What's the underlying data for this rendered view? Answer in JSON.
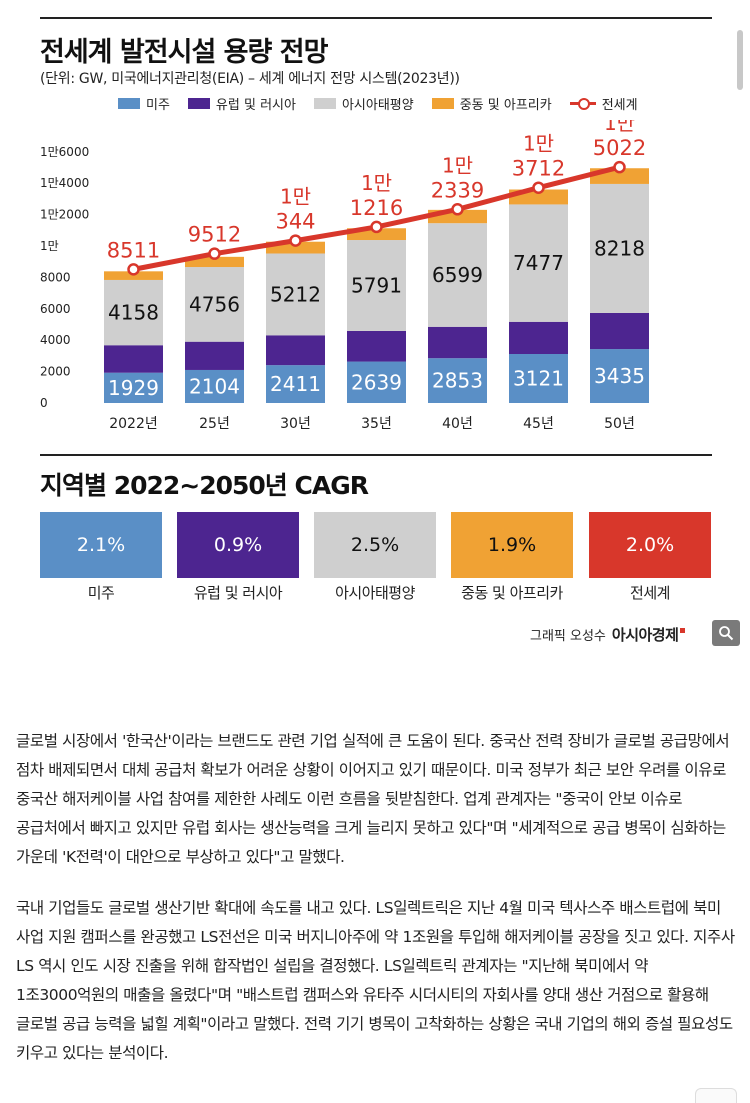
{
  "colors": {
    "americas": "#5a8fc6",
    "europe_russia": "#4d2590",
    "asia_pacific": "#cfcfcf",
    "middle_east_africa": "#f0a234",
    "world": "#d8372b"
  },
  "infographic": {
    "title": "전세계 발전시설 용량 전망",
    "subtitle": "(단위: GW, 미국에너지관리청(EIA) – 세계 에너지 전망 시스템(2023년))",
    "legend": [
      {
        "label": "미주",
        "color": "#5a8fc6"
      },
      {
        "label": "유럽 및 러시아",
        "color": "#4d2590"
      },
      {
        "label": "아시아태평양",
        "color": "#cfcfcf"
      },
      {
        "label": "중동 및 아프리카",
        "color": "#f0a234"
      },
      {
        "label": "전세계",
        "color": "#d8372b"
      }
    ],
    "cagr_title": "지역별 2022~2050년 CAGR",
    "cagr": [
      {
        "value": "2.1%",
        "label": "미주",
        "color": "#5a8fc6"
      },
      {
        "value": "0.9%",
        "label": "유럽 및 러시아",
        "color": "#4d2590"
      },
      {
        "value": "2.5%",
        "label": "아시아태평양",
        "color": "#cfcfcf"
      },
      {
        "value": "1.9%",
        "label": "중동 및 아프리카",
        "color": "#f0a234"
      },
      {
        "value": "2.0%",
        "label": "전세계",
        "color": "#d8372b"
      }
    ],
    "credit": "그래픽 오성수",
    "brand": "아시아경제"
  },
  "chart_data": {
    "type": "bar",
    "stacked": true,
    "title": "전세계 발전시설 용량 전망",
    "categories": [
      "2022년",
      "25년",
      "30년",
      "35년",
      "40년",
      "45년",
      "50년"
    ],
    "y_ticks": [
      "0",
      "2000",
      "4000",
      "6000",
      "8000",
      "1만",
      "1만2000",
      "1만4000",
      "1만6000"
    ],
    "ylim": [
      0,
      16000
    ],
    "series": [
      {
        "name": "미주",
        "values": [
          1929,
          2104,
          2411,
          2639,
          2853,
          3121,
          3435
        ],
        "labels": [
          "1929",
          "2104",
          "2411",
          "2639",
          "2853",
          "3121",
          "3435"
        ]
      },
      {
        "name": "유럽 및 러시아",
        "values": [
          1750,
          1800,
          1900,
          1950,
          2000,
          2050,
          2300
        ]
      },
      {
        "name": "아시아태평양",
        "values": [
          4158,
          4756,
          5212,
          5791,
          6599,
          7477,
          8218
        ],
        "labels": [
          "4158",
          "4756",
          "5212",
          "5791",
          "6599",
          "7477",
          "8218"
        ]
      },
      {
        "name": "중동 및 아프리카",
        "values": [
          550,
          650,
          750,
          750,
          850,
          950,
          1000
        ]
      }
    ],
    "line": {
      "name": "전세계",
      "values": [
        8511,
        9512,
        10344,
        11216,
        12339,
        13712,
        15022
      ],
      "labels": [
        {
          "top": "",
          "bottom": "8511"
        },
        {
          "top": "",
          "bottom": "9512"
        },
        {
          "top": "1만",
          "bottom": "344"
        },
        {
          "top": "1만",
          "bottom": "1216"
        },
        {
          "top": "1만",
          "bottom": "2339"
        },
        {
          "top": "1만",
          "bottom": "3712"
        },
        {
          "top": "1만",
          "bottom": "5022"
        }
      ]
    },
    "legend_position": "top",
    "grid": false
  },
  "article": {
    "paragraphs": [
      "글로벌 시장에서 '한국산'이라는 브랜드도 관련 기업 실적에 큰 도움이 된다. 중국산 전력 장비가 글로벌 공급망에서 점차 배제되면서 대체 공급처 확보가 어려운 상황이 이어지고 있기 때문이다. 미국 정부가 최근 보안 우려를 이유로 중국산 해저케이블 사업 참여를 제한한 사례도 이런 흐름을 뒷받침한다. 업계 관계자는 \"중국이 안보 이슈로 공급처에서 빠지고 있지만 유럽 회사는 생산능력을 크게 늘리지 못하고 있다\"며 \"세계적으로 공급 병목이 심화하는 가운데 'K전력'이 대안으로 부상하고 있다\"고 말했다.",
      "국내 기업들도 글로벌 생산기반 확대에 속도를 내고 있다. LS일렉트릭은 지난 4월 미국 텍사스주 배스트럽에 북미 사업 지원 캠퍼스를 완공했고 LS전선은 미국 버지니아주에 약 1조원을 투입해 해저케이블 공장을 짓고 있다. 지주사 LS 역시 인도 시장 진출을 위해 합작법인 설립을 결정했다. LS일렉트릭 관계자는 \"지난해 북미에서 약 1조3000억원의 매출을 올렸다\"며 \"배스트럽 캠퍼스와 유타주 시더시티의 자회사를 양대 생산 거점으로 활용해 글로벌 공급 능력을 넓힐 계획\"이라고 말했다. 전력 기기 병목이 고착화하는 상황은 국내 기업의 해외 증설 필요성도 키우고 있다는 분석이다."
    ]
  }
}
